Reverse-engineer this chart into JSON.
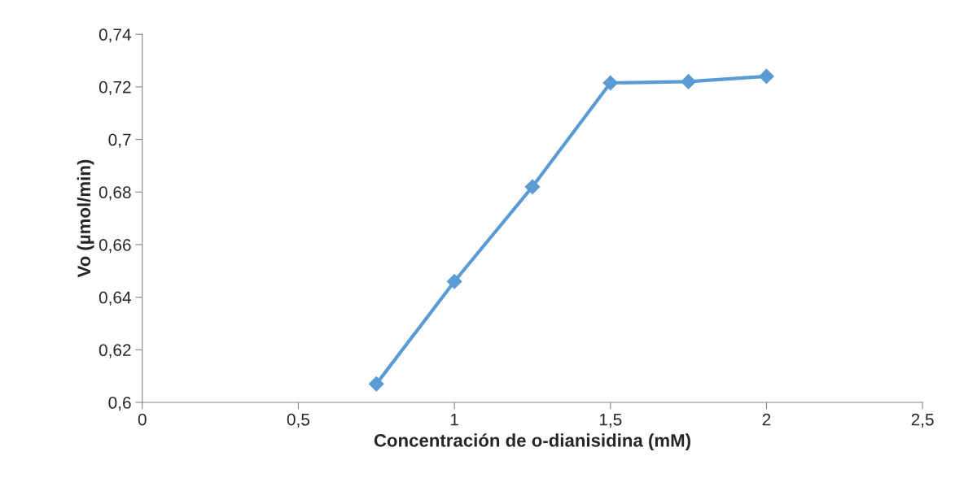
{
  "chart_data": {
    "type": "line",
    "xlabel": "Concentración de o-dianisidina (mM)",
    "ylabel": "Vo (µmol/min)",
    "x": [
      0.75,
      1,
      1.25,
      1.5,
      1.75,
      2
    ],
    "series": [
      {
        "color": "#5b9bd5",
        "values": [
          0.607,
          0.646,
          0.682,
          0.7215,
          0.722,
          0.724
        ]
      }
    ],
    "xlim": [
      0,
      2.5
    ],
    "xticks": [
      {
        "value": 0,
        "label": "0"
      },
      {
        "value": 0.5,
        "label": "0,5"
      },
      {
        "value": 1,
        "label": "1"
      },
      {
        "value": 1.5,
        "label": "1,5"
      },
      {
        "value": 2,
        "label": "2"
      },
      {
        "value": 2.5,
        "label": "2,5"
      }
    ],
    "ylim": [
      0.6,
      0.74
    ],
    "yticks": [
      {
        "value": 0.6,
        "label": "0,6"
      },
      {
        "value": 0.62,
        "label": "0,62"
      },
      {
        "value": 0.64,
        "label": "0,64"
      },
      {
        "value": 0.66,
        "label": "0,66"
      },
      {
        "value": 0.68,
        "label": "0,68"
      },
      {
        "value": 0.7,
        "label": "0,7"
      },
      {
        "value": 0.72,
        "label": "0,72"
      },
      {
        "value": 0.74,
        "label": "0,74"
      }
    ],
    "marker": "diamond",
    "line_style": "solid",
    "grid": false
  }
}
